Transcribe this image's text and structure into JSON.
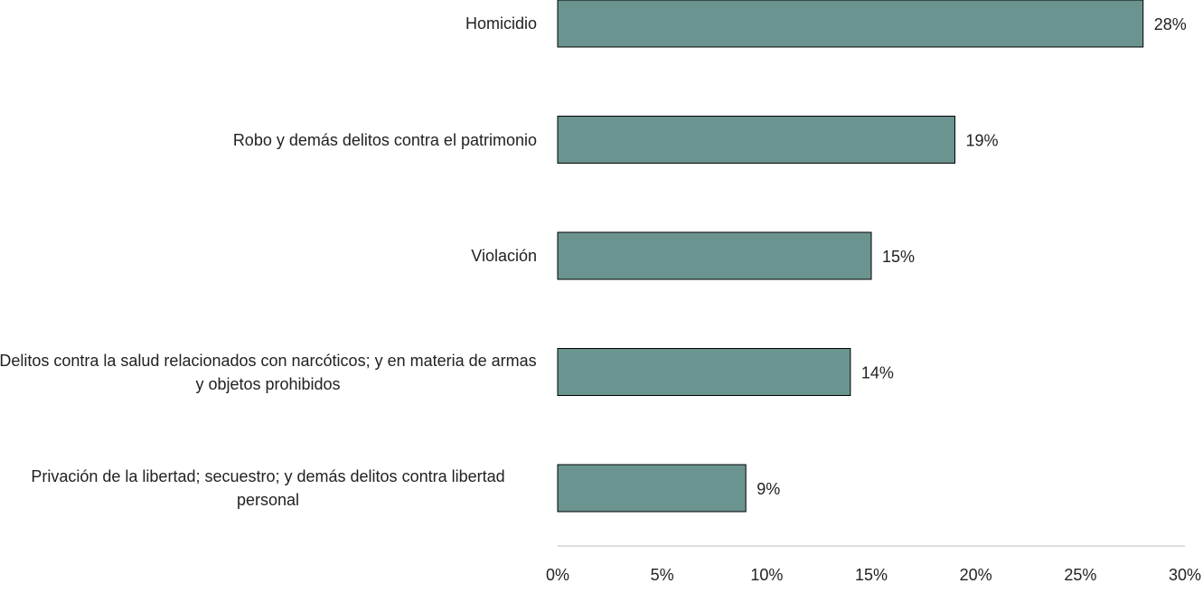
{
  "chart_data": {
    "type": "bar",
    "orientation": "horizontal",
    "categories": [
      "Homicidio",
      "Robo y demás delitos contra el patrimonio",
      "Violación",
      "Delitos contra la salud relacionados con narcóticos; y en materia de armas y objetos prohibidos",
      "Privación de la libertad; secuestro; y demás delitos contra libertad personal"
    ],
    "values": [
      28,
      19,
      15,
      14,
      9
    ],
    "value_labels": [
      "28%",
      "19%",
      "15%",
      "14%",
      "9%"
    ],
    "color": "#6b9490",
    "xlim": [
      0,
      30
    ],
    "xticks": [
      {
        "value": 0,
        "label": "0%"
      },
      {
        "value": 5,
        "label": "5%"
      },
      {
        "value": 10,
        "label": "10%"
      },
      {
        "value": 15,
        "label": "15%"
      },
      {
        "value": 20,
        "label": "20%"
      },
      {
        "value": 25,
        "label": "25%"
      },
      {
        "value": 30,
        "label": "30%"
      }
    ],
    "grid": false
  }
}
